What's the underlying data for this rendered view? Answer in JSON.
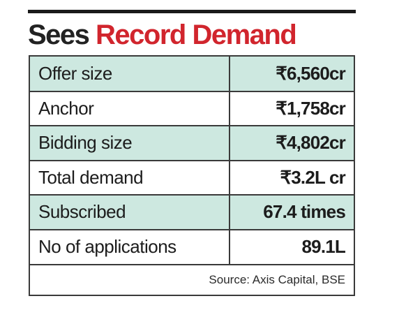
{
  "headline": {
    "part1": "Sees",
    "part2": "Record Demand"
  },
  "rows": [
    {
      "label": "Offer size",
      "value": "₹6,560cr",
      "shaded": true
    },
    {
      "label": "Anchor",
      "value": "₹1,758cr",
      "shaded": false
    },
    {
      "label": "Bidding size",
      "value": "₹4,802cr",
      "shaded": true
    },
    {
      "label": "Total demand",
      "value": "₹3.2L cr",
      "shaded": false
    },
    {
      "label": "Subscribed",
      "value": "67.4 times",
      "shaded": true
    },
    {
      "label": "No of applications",
      "value": "89.1L",
      "shaded": false
    }
  ],
  "source": "Source: Axis Capital, BSE",
  "colors": {
    "headline_red": "#d1252d",
    "row_shade": "#cde8e0"
  }
}
